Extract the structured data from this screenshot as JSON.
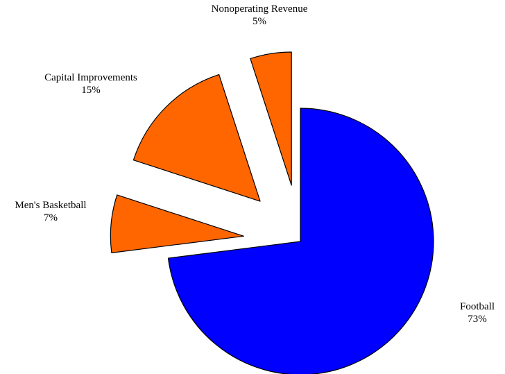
{
  "chart_data": {
    "type": "pie",
    "title": "",
    "slices": [
      {
        "label": "Football",
        "percent_label": "73%",
        "value": 73,
        "color": "#0000ff",
        "exploded": false
      },
      {
        "label": "Men's Basketball",
        "percent_label": "7%",
        "value": 7,
        "color": "#ff6600",
        "exploded": true
      },
      {
        "label": "Capital Improvements",
        "percent_label": "15%",
        "value": 15,
        "color": "#ff6600",
        "exploded": true
      },
      {
        "label": "Nonoperating Revenue",
        "percent_label": "5%",
        "value": 5,
        "color": "#ff6600",
        "exploded": true
      }
    ],
    "start_angle_deg": 0,
    "direction": "clockwise",
    "legend": "none"
  }
}
